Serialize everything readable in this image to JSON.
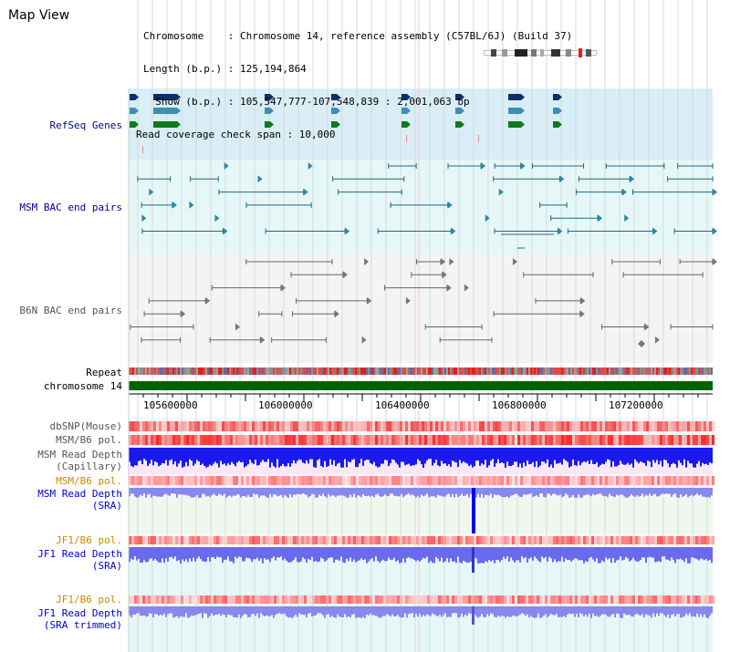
{
  "title": "Map View",
  "info": {
    "chromosome_label": "Chromosome    : Chromosome 14, reference assembly (C57BL/6J) (Build 37)",
    "length_label": "Length (b.p.) : 125,194,864",
    "show_label": "  Show (b.p.) : 105,547,777-107,548,839 : 2,001,063 bp",
    "coverage_label": "Read coverage check span : 10,000"
  },
  "tracks": {
    "refseq": "RefSeq Genes",
    "msm_bac": "MSM BAC end pairs",
    "b6n_bac": "B6N BAC end pairs",
    "repeat": "Repeat",
    "chromosome": "chromosome 14",
    "dbsnp": "dbSNP(Mouse)",
    "msm_b6_pol": "MSM/B6 pol.",
    "msm_read_depth_cap_1": "MSM Read Depth",
    "msm_read_depth_cap_2": "(Capillary)",
    "msm_b6_pol2": "MSM/B6 pol.",
    "msm_read_depth_sra_1": "MSM Read Depth",
    "msm_read_depth_sra_2": "(SRA)",
    "jf1_b6_pol": "JF1/B6 pol.",
    "jf1_read_depth_sra_1": "JF1 Read Depth",
    "jf1_read_depth_sra_2": "(SRA)",
    "jf1_b6_pol2": "JF1/B6 pol.",
    "jf1_read_depth_trim_1": "JF1 Read Depth",
    "jf1_read_depth_trim_2": "(SRA trimmed)"
  },
  "ruler_ticks": [
    "105600000",
    "106000000",
    "106400000",
    "106800000",
    "107200000"
  ],
  "colors": {
    "refseq_bg": "#d9eef6",
    "msm_bac_bg": "#e6f7f7",
    "b6n_bac_bg": "#f4f4f4",
    "chrom_green": "#006400",
    "snp_red": "#ee3333",
    "depth_blue": "#1a1aee",
    "depth_light": "#8888ee"
  }
}
